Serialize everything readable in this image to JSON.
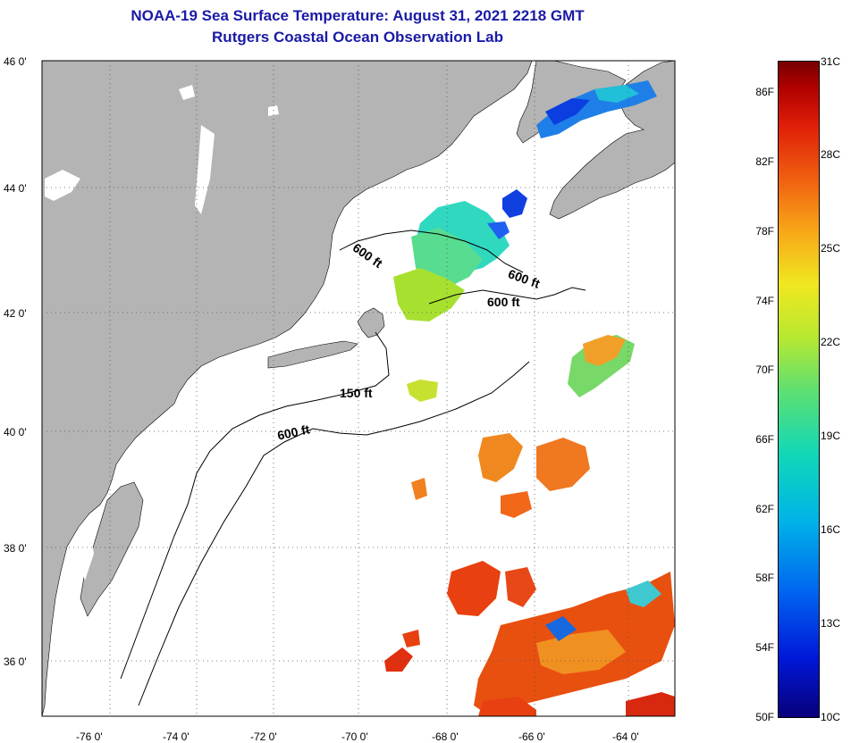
{
  "title": "NOAA-19 Sea Surface Temperature:  August 31, 2021 2218 GMT",
  "subtitle": "Rutgers Coastal Ocean Observation Lab",
  "latitude_labels": [
    "46 0'",
    "44 0'",
    "42 0'",
    "40 0'",
    "38 0'",
    "36 0'"
  ],
  "longitude_labels": [
    "-76 0'",
    "-74 0'",
    "-72 0'",
    "-70 0'",
    "-68 0'",
    "-66 0'",
    "-64 0'"
  ],
  "contour_labels": {
    "c600a": "600 ft",
    "c600b": "600 ft",
    "c600c": "600 ft",
    "c150": "150 ft",
    "c600d": "600 ft"
  },
  "colorbar": {
    "fahrenheit": [
      "86F",
      "82F",
      "78F",
      "74F",
      "70F",
      "66F",
      "62F",
      "58F",
      "54F",
      "50F"
    ],
    "celsius": [
      "31C",
      "28C",
      "25C",
      "22C",
      "19C",
      "16C",
      "13C",
      "10C"
    ]
  },
  "colors": {
    "title": "#1a1aa6",
    "land": "#b4b4b4",
    "ocean_nodata": "#ffffff"
  }
}
